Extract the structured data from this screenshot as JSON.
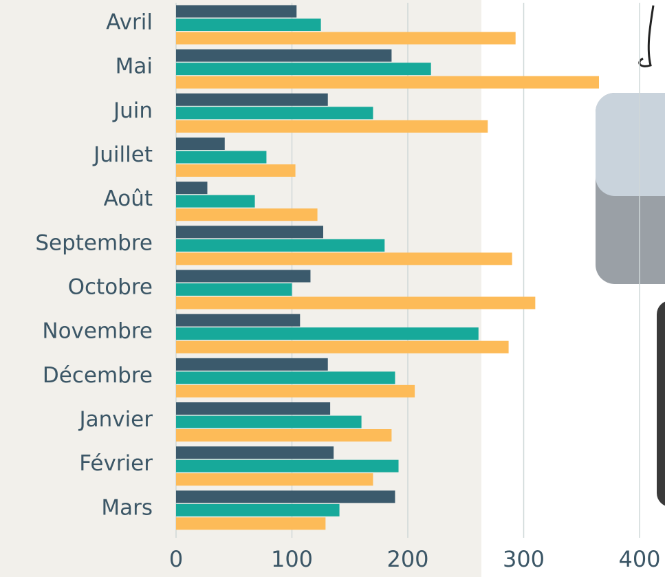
{
  "chart_data": {
    "type": "bar",
    "orientation": "horizontal",
    "categories": [
      "Avril",
      "Mai",
      "Juin",
      "Juillet",
      "Août",
      "Septembre",
      "Octobre",
      "Novembre",
      "Décembre",
      "Janvier",
      "Février",
      "Mars"
    ],
    "series": [
      {
        "color": "#3b5a6c",
        "values": [
          104,
          186,
          131,
          42,
          27,
          127,
          116,
          107,
          131,
          133,
          136,
          189
        ]
      },
      {
        "color": "#17a99a",
        "values": [
          125,
          220,
          170,
          78,
          68,
          180,
          100,
          261,
          189,
          160,
          192,
          141
        ]
      },
      {
        "color": "#fdbb58",
        "values": [
          293,
          365,
          269,
          103,
          122,
          290,
          310,
          287,
          206,
          186,
          170,
          129
        ]
      }
    ],
    "xlim": [
      0,
      400
    ],
    "xticks": [
      0,
      100,
      200,
      300,
      400
    ],
    "grid": true
  }
}
